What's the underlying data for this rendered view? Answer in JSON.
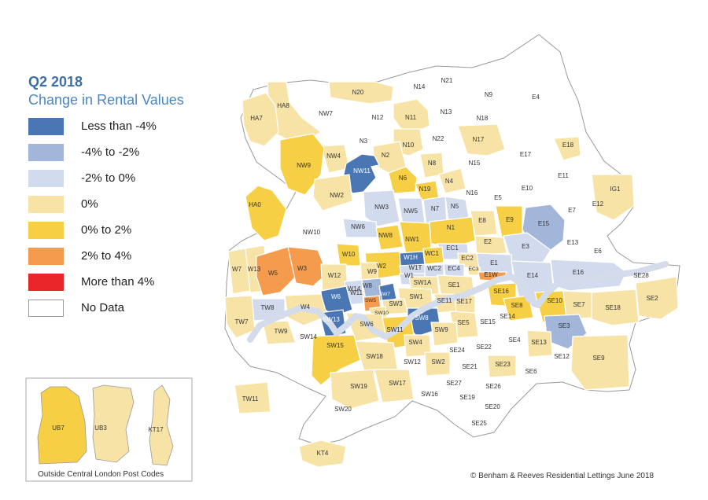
{
  "title": "Q2 2018",
  "subtitle": "Change in Rental Values",
  "legend": [
    {
      "label": "Less than -4%",
      "color": "#4a77b4"
    },
    {
      "label": "-4% to -2%",
      "color": "#a2b6da"
    },
    {
      "label": "-2% to 0%",
      "color": "#d2dbed"
    },
    {
      "label": "0%",
      "color": "#f8e3a6"
    },
    {
      "label": "0% to 2%",
      "color": "#f6cf45"
    },
    {
      "label": "2% to 4%",
      "color": "#f49b4d"
    },
    {
      "label": "More than 4%",
      "color": "#e8262a"
    },
    {
      "label": "No Data",
      "color": "#ffffff"
    }
  ],
  "water_color": "#d4dbea",
  "inset_caption": "Outside Central London Post Codes",
  "credit": "© Benham & Reeves Residential Lettings June 2018",
  "districts": [
    {
      "code": "HA8",
      "cat": "0%"
    },
    {
      "code": "HA7",
      "cat": "0%"
    },
    {
      "code": "NW7",
      "cat": "No Data"
    },
    {
      "code": "N20",
      "cat": "0%"
    },
    {
      "code": "N14",
      "cat": "No Data"
    },
    {
      "code": "N21",
      "cat": "No Data"
    },
    {
      "code": "N9",
      "cat": "No Data"
    },
    {
      "code": "E4",
      "cat": "No Data"
    },
    {
      "code": "N12",
      "cat": "No Data"
    },
    {
      "code": "N11",
      "cat": "0%"
    },
    {
      "code": "N13",
      "cat": "No Data"
    },
    {
      "code": "N18",
      "cat": "No Data"
    },
    {
      "code": "N3",
      "cat": "No Data"
    },
    {
      "code": "N10",
      "cat": "0%"
    },
    {
      "code": "N22",
      "cat": "No Data"
    },
    {
      "code": "N17",
      "cat": "0%"
    },
    {
      "code": "E18",
      "cat": "0%"
    },
    {
      "code": "N2",
      "cat": "0%"
    },
    {
      "code": "NW4",
      "cat": "0%"
    },
    {
      "code": "NW9",
      "cat": "0% to 2%"
    },
    {
      "code": "N8",
      "cat": "0%"
    },
    {
      "code": "N15",
      "cat": "No Data"
    },
    {
      "code": "E17",
      "cat": "No Data"
    },
    {
      "code": "NW11",
      "cat": "Less than -4%"
    },
    {
      "code": "N6",
      "cat": "0% to 2%"
    },
    {
      "code": "N4",
      "cat": "0%"
    },
    {
      "code": "N19",
      "cat": "0% to 2%"
    },
    {
      "code": "N16",
      "cat": "No Data"
    },
    {
      "code": "E10",
      "cat": "No Data"
    },
    {
      "code": "E11",
      "cat": "No Data"
    },
    {
      "code": "IG1",
      "cat": "0%"
    },
    {
      "code": "NW2",
      "cat": "0%"
    },
    {
      "code": "E5",
      "cat": "No Data"
    },
    {
      "code": "E7",
      "cat": "No Data"
    },
    {
      "code": "E12",
      "cat": "No Data"
    },
    {
      "code": "NW3",
      "cat": "-2% to 0%"
    },
    {
      "code": "NW5",
      "cat": "-2% to 0%"
    },
    {
      "code": "N7",
      "cat": "-2% to 0%"
    },
    {
      "code": "N5",
      "cat": "-2% to 0%"
    },
    {
      "code": "HA0",
      "cat": "0% to 2%"
    },
    {
      "code": "E15",
      "cat": "-4% to -2%"
    },
    {
      "code": "NW6",
      "cat": "-2% to 0%"
    },
    {
      "code": "E8",
      "cat": "0%"
    },
    {
      "code": "E9",
      "cat": "0% to 2%"
    },
    {
      "code": "N1",
      "cat": "0% to 2%"
    },
    {
      "code": "NW10",
      "cat": "No Data"
    },
    {
      "code": "NW8",
      "cat": "0% to 2%"
    },
    {
      "code": "NW1",
      "cat": "0% to 2%"
    },
    {
      "code": "E3",
      "cat": "-2% to 0%"
    },
    {
      "code": "E13",
      "cat": "No Data"
    },
    {
      "code": "E2",
      "cat": "0%"
    },
    {
      "code": "EC1",
      "cat": "-2% to 0%"
    },
    {
      "code": "E6",
      "cat": "No Data"
    },
    {
      "code": "W7",
      "cat": "0%"
    },
    {
      "code": "W13",
      "cat": "0%"
    },
    {
      "code": "W10",
      "cat": "0% to 2%"
    },
    {
      "code": "W1H",
      "cat": "Less than -4%"
    },
    {
      "code": "WC1",
      "cat": "0% to 2%"
    },
    {
      "code": "EC2",
      "cat": "0%"
    },
    {
      "code": "E1",
      "cat": "-2% to 0%"
    },
    {
      "code": "W5",
      "cat": "2% to 4%"
    },
    {
      "code": "W3",
      "cat": "2% to 4%"
    },
    {
      "code": "W2",
      "cat": "0% to 2%"
    },
    {
      "code": "W1T",
      "cat": "-2% to 0%"
    },
    {
      "code": "EC3",
      "cat": "0%"
    },
    {
      "code": "W9",
      "cat": "0%"
    },
    {
      "code": "E1W",
      "cat": "2% to 4%"
    },
    {
      "code": "W12",
      "cat": "0%"
    },
    {
      "code": "W1",
      "cat": "-2% to 0%"
    },
    {
      "code": "WC2",
      "cat": "-2% to 0%"
    },
    {
      "code": "EC4",
      "cat": "-2% to 0%"
    },
    {
      "code": "E14",
      "cat": "-2% to 0%"
    },
    {
      "code": "E16",
      "cat": "-2% to 0%"
    },
    {
      "code": "SE28",
      "cat": "No Data"
    },
    {
      "code": "W11",
      "cat": "0%"
    },
    {
      "code": "W14",
      "cat": "-2% to 0%"
    },
    {
      "code": "W8",
      "cat": "-4% to -2%"
    },
    {
      "code": "SW7",
      "cat": "Less than -4%"
    },
    {
      "code": "SW1A",
      "cat": "0%"
    },
    {
      "code": "SE1",
      "cat": "0%"
    },
    {
      "code": "SE16",
      "cat": "0% to 2%"
    },
    {
      "code": "W6",
      "cat": "Less than -4%"
    },
    {
      "code": "SW5",
      "cat": "2% to 4%"
    },
    {
      "code": "SW1",
      "cat": "0%"
    },
    {
      "code": "SE11",
      "cat": "0%"
    },
    {
      "code": "SE17",
      "cat": "0%"
    },
    {
      "code": "SE8",
      "cat": "0% to 2%"
    },
    {
      "code": "SE10",
      "cat": "0% to 2%"
    },
    {
      "code": "SE7",
      "cat": "0%"
    },
    {
      "code": "SE2",
      "cat": "0%"
    },
    {
      "code": "TW8",
      "cat": "-2% to 0%"
    },
    {
      "code": "W4",
      "cat": "0%"
    },
    {
      "code": "SW3",
      "cat": "0%"
    },
    {
      "code": "SW10",
      "cat": "0%"
    },
    {
      "code": "SE18",
      "cat": "0%"
    },
    {
      "code": "TW7",
      "cat": "0%"
    },
    {
      "code": "SW13",
      "cat": "Less than -4%"
    },
    {
      "code": "SW6",
      "cat": "0%"
    },
    {
      "code": "SW8",
      "cat": "Less than -4%"
    },
    {
      "code": "SE5",
      "cat": "0%"
    },
    {
      "code": "SE15",
      "cat": "No Data"
    },
    {
      "code": "SE14",
      "cat": "No Data"
    },
    {
      "code": "SE3",
      "cat": "-4% to -2%"
    },
    {
      "code": "TW9",
      "cat": "0%"
    },
    {
      "code": "SW14",
      "cat": "No Data"
    },
    {
      "code": "SW11",
      "cat": "0% to 2%"
    },
    {
      "code": "SW9",
      "cat": "0%"
    },
    {
      "code": "SE4",
      "cat": "No Data"
    },
    {
      "code": "SE13",
      "cat": "0%"
    },
    {
      "code": "SW15",
      "cat": "0% to 2%"
    },
    {
      "code": "SW4",
      "cat": "0%"
    },
    {
      "code": "SE24",
      "cat": "No Data"
    },
    {
      "code": "SE22",
      "cat": "No Data"
    },
    {
      "code": "SE12",
      "cat": "No Data"
    },
    {
      "code": "SE9",
      "cat": "0%"
    },
    {
      "code": "SW18",
      "cat": "0%"
    },
    {
      "code": "SW12",
      "cat": "No Data"
    },
    {
      "code": "SW2",
      "cat": "0%"
    },
    {
      "code": "SE21",
      "cat": "No Data"
    },
    {
      "code": "SE23",
      "cat": "0%"
    },
    {
      "code": "SE6",
      "cat": "No Data"
    },
    {
      "code": "TW11",
      "cat": "0%"
    },
    {
      "code": "SW19",
      "cat": "0%"
    },
    {
      "code": "SW17",
      "cat": "0%"
    },
    {
      "code": "SE27",
      "cat": "No Data"
    },
    {
      "code": "SE26",
      "cat": "No Data"
    },
    {
      "code": "SW16",
      "cat": "No Data"
    },
    {
      "code": "SE19",
      "cat": "No Data"
    },
    {
      "code": "SW20",
      "cat": "No Data"
    },
    {
      "code": "SE20",
      "cat": "No Data"
    },
    {
      "code": "SE25",
      "cat": "No Data"
    },
    {
      "code": "KT4",
      "cat": "0%"
    }
  ],
  "inset_districts": [
    {
      "code": "UB7",
      "cat": "0% to 2%"
    },
    {
      "code": "UB3",
      "cat": "0%"
    },
    {
      "code": "KT17",
      "cat": "0%"
    }
  ]
}
